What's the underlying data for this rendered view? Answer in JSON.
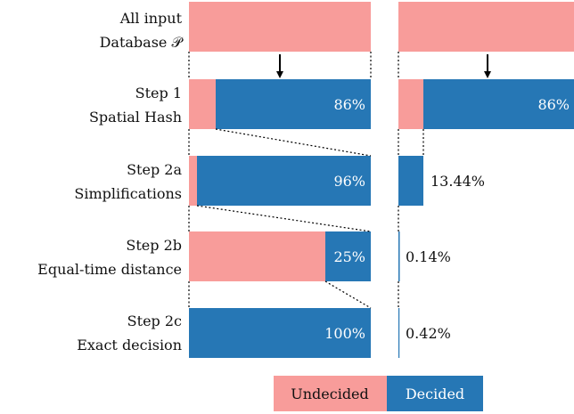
{
  "colors": {
    "undecided": "#F89C9A",
    "decided": "#2677B5",
    "text": "#111111",
    "bar_label": "#ffffff"
  },
  "stages": [
    {
      "label1": "All input",
      "label2": "Database 𝒫",
      "left_pct": "",
      "right_pct": ""
    },
    {
      "label1": "Step 1",
      "label2": "Spatial Hash",
      "left_pct": "86%",
      "right_pct": "86%"
    },
    {
      "label1": "Step 2a",
      "label2": "Simplifications",
      "left_pct": "96%",
      "right_pct": "13.44%"
    },
    {
      "label1": "Step 2b",
      "label2": "Equal-time distance",
      "left_pct": "25%",
      "right_pct": "0.14%"
    },
    {
      "label1": "Step 2c",
      "label2": "Exact decision",
      "left_pct": "100%",
      "right_pct": "0.42%"
    }
  ],
  "legend": {
    "undecided": "Undecided",
    "decided": "Decided"
  }
}
